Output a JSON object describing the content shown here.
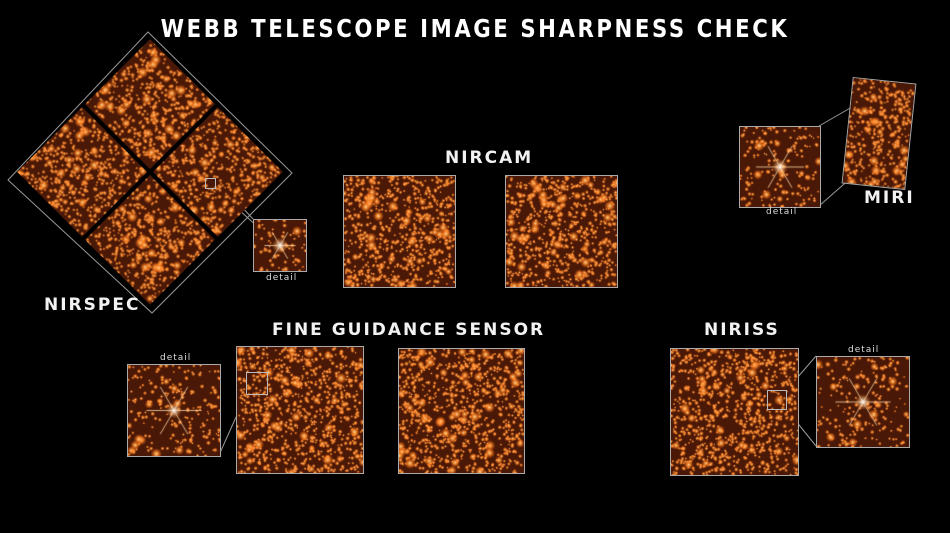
{
  "title": "WEBB TELESCOPE IMAGE SHARPNESS CHECK",
  "instruments": {
    "nirspec": {
      "label": "NIRSPEC",
      "detail_label": "detail"
    },
    "nircam": {
      "label": "NIRCAM"
    },
    "miri": {
      "label": "MIRI",
      "detail_label": "detail"
    },
    "fgs": {
      "label": "FINE GUIDANCE SENSOR",
      "detail_label": "detail"
    },
    "niriss": {
      "label": "NIRISS",
      "detail_label": "detail"
    }
  },
  "colors": {
    "background": "#000000",
    "starfield": "#4a1806",
    "star": "#ffd9a0",
    "frame": "#aaaaaa"
  }
}
